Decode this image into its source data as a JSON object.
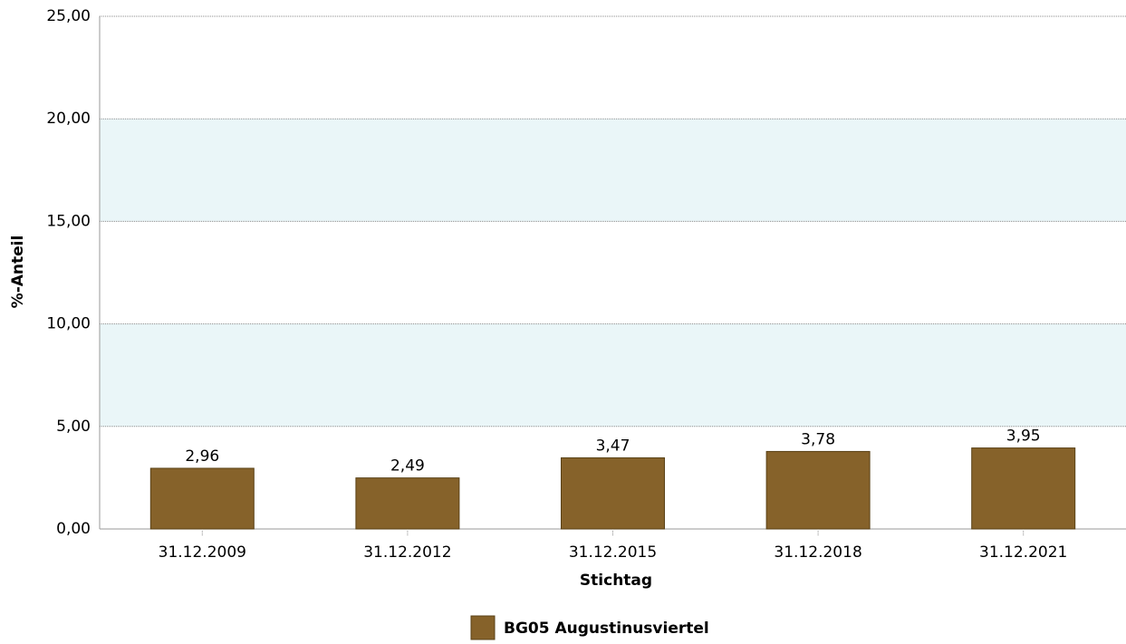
{
  "chart_data": {
    "type": "bar",
    "x_label": "Stichtag",
    "y_label": "%-Anteil",
    "categories": [
      "31.12.2009",
      "31.12.2012",
      "31.12.2015",
      "31.12.2018",
      "31.12.2021"
    ],
    "series": [
      {
        "name": "BG05 Augustinusviertel",
        "color": "#86622a",
        "values": [
          2.96,
          2.49,
          3.47,
          3.78,
          3.95
        ],
        "value_labels": [
          "2,96",
          "2,49",
          "3,47",
          "3,78",
          "3,95"
        ]
      }
    ],
    "ylim": [
      0,
      25
    ],
    "yticks": [
      {
        "value": 0,
        "label": "0,00"
      },
      {
        "value": 5,
        "label": "5,00"
      },
      {
        "value": 10,
        "label": "10,00"
      },
      {
        "value": 15,
        "label": "15,00"
      },
      {
        "value": 20,
        "label": "20,00"
      },
      {
        "value": 25,
        "label": "25,00"
      }
    ],
    "grid": true,
    "legend": "bottom"
  }
}
